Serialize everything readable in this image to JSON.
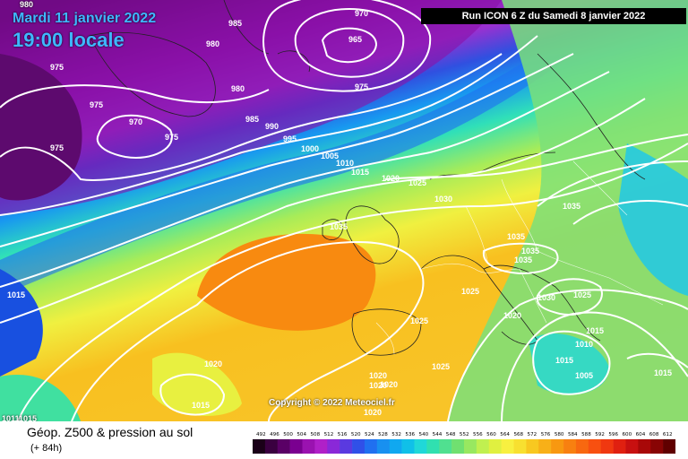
{
  "header": {
    "date": "Mardi 11 janvier 2022",
    "time": "19:00 locale",
    "run": "Run ICON 6 Z du Samedi 8 janvier 2022"
  },
  "footer": {
    "title": "Géop. Z500 & pression au sol",
    "subtitle": "(+ 84h)",
    "copyright": "Copyright © 2022 Meteociel.fr"
  },
  "corner_labels": [
    "980",
    "10111015"
  ],
  "isobar_labels": [
    "975",
    "985",
    "970",
    "980",
    "965",
    "975",
    "975",
    "970",
    "975",
    "980",
    "985",
    "990",
    "995",
    "1000",
    "1005",
    "1010",
    "1015",
    "1020",
    "1025",
    "1030",
    "1035",
    "975",
    "1035",
    "1035",
    "1035",
    "1035",
    "1030",
    "1025",
    "1025",
    "1020",
    "1025",
    "1015",
    "1010",
    "1015",
    "1020",
    "1015",
    "1025",
    "1020",
    "1020",
    "1005",
    "1015",
    "1015",
    "1020",
    "1020"
  ],
  "legend": {
    "colors": [
      "#1a0018",
      "#3a0040",
      "#5a0066",
      "#7a0090",
      "#9a12b0",
      "#b020c8",
      "#8a28d8",
      "#5a3ae0",
      "#3050e8",
      "#2070f0",
      "#1890f0",
      "#10a8f0",
      "#10c0e8",
      "#20d8d8",
      "#30e0b0",
      "#50e090",
      "#70e070",
      "#98e860",
      "#c0f050",
      "#e0f040",
      "#f8f040",
      "#f8e030",
      "#f8c820",
      "#f8b018",
      "#f89810",
      "#f88010",
      "#f86810",
      "#f85010",
      "#f03810",
      "#e02010",
      "#c81010",
      "#a80808",
      "#880404",
      "#600000"
    ],
    "ticks": [
      "492",
      "496",
      "500",
      "504",
      "508",
      "512",
      "516",
      "520",
      "524",
      "528",
      "532",
      "536",
      "540",
      "544",
      "548",
      "552",
      "556",
      "560",
      "564",
      "568",
      "572",
      "576",
      "580",
      "584",
      "588",
      "592",
      "596",
      "600",
      "604",
      "608",
      "612"
    ]
  }
}
